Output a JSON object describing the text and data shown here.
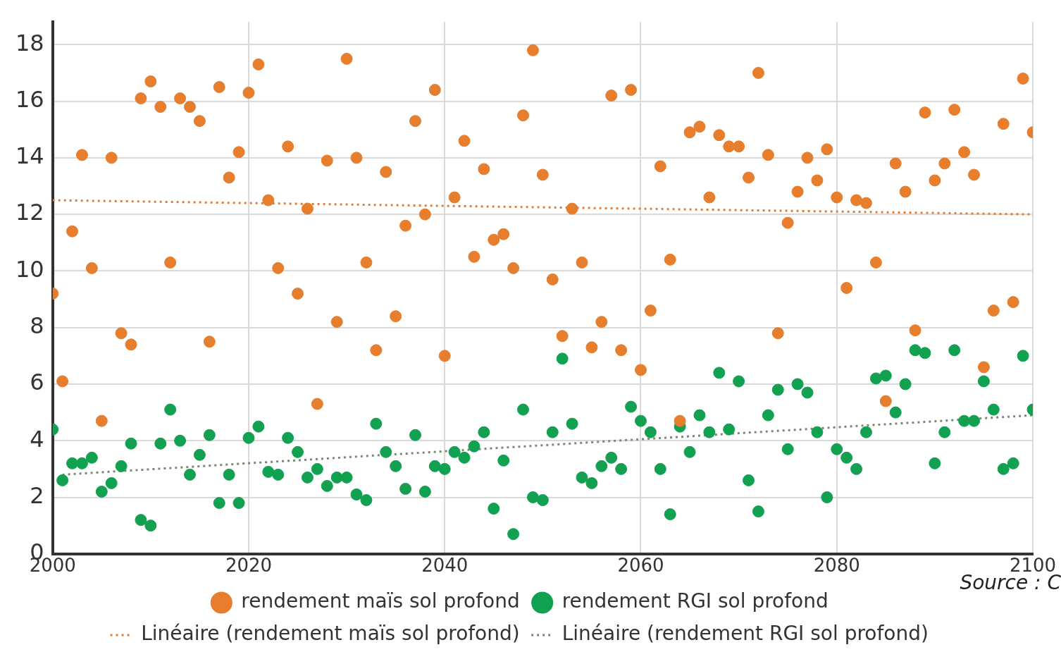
{
  "chart_data": {
    "type": "scatter",
    "x": [
      2000,
      2001,
      2002,
      2003,
      2004,
      2005,
      2006,
      2007,
      2008,
      2009,
      2010,
      2011,
      2012,
      2013,
      2014,
      2015,
      2016,
      2017,
      2018,
      2019,
      2020,
      2021,
      2022,
      2023,
      2024,
      2025,
      2026,
      2027,
      2028,
      2029,
      2030,
      2031,
      2032,
      2033,
      2034,
      2035,
      2036,
      2037,
      2038,
      2039,
      2040,
      2041,
      2042,
      2043,
      2044,
      2045,
      2046,
      2047,
      2048,
      2049,
      2050,
      2051,
      2052,
      2053,
      2054,
      2055,
      2056,
      2057,
      2058,
      2059,
      2060,
      2061,
      2062,
      2063,
      2064,
      2065,
      2066,
      2067,
      2068,
      2069,
      2070,
      2071,
      2072,
      2073,
      2074,
      2075,
      2076,
      2077,
      2078,
      2079,
      2080,
      2081,
      2082,
      2083,
      2084,
      2085,
      2086,
      2087,
      2088,
      2089,
      2090,
      2091,
      2092,
      2093,
      2094,
      2095,
      2096,
      2097,
      2098,
      2099,
      2100
    ],
    "series": [
      {
        "name": "rendement maïs sol profond",
        "type": "scatter",
        "marker": "circle",
        "color": "#e67e2e",
        "values": [
          9.2,
          6.1,
          11.4,
          14.1,
          10.1,
          4.7,
          14.0,
          7.8,
          7.4,
          16.1,
          16.7,
          15.8,
          10.3,
          16.1,
          15.8,
          15.3,
          7.5,
          16.5,
          13.3,
          14.2,
          16.3,
          17.3,
          12.5,
          10.1,
          14.4,
          9.2,
          12.2,
          5.3,
          13.9,
          8.2,
          17.5,
          14.0,
          10.3,
          7.2,
          13.5,
          8.4,
          11.6,
          15.3,
          12.0,
          16.4,
          7.0,
          12.6,
          14.6,
          10.5,
          13.6,
          11.1,
          11.3,
          10.1,
          15.5,
          17.8,
          13.4,
          9.7,
          7.7,
          12.2,
          10.3,
          7.3,
          8.2,
          16.2,
          7.2,
          16.4,
          6.5,
          8.6,
          13.7,
          10.4,
          4.7,
          14.9,
          15.1,
          12.6,
          14.8,
          14.4,
          14.4,
          13.3,
          17.0,
          14.1,
          7.8,
          11.7,
          12.8,
          14.0,
          13.2,
          14.3,
          12.6,
          9.4,
          12.5,
          12.4,
          10.3,
          5.4,
          13.8,
          12.8,
          7.9,
          15.6,
          13.2,
          13.8,
          15.7,
          14.2,
          13.4,
          6.6,
          8.6,
          15.2,
          8.9,
          16.8,
          14.9
        ]
      },
      {
        "name": "rendement RGI sol profond",
        "type": "scatter",
        "marker": "circle",
        "color": "#12a150",
        "values": [
          4.4,
          2.6,
          3.2,
          3.2,
          3.4,
          2.2,
          2.5,
          3.1,
          3.9,
          1.2,
          1.0,
          3.9,
          5.1,
          4.0,
          2.8,
          3.5,
          4.2,
          1.8,
          2.8,
          1.8,
          4.1,
          4.5,
          2.9,
          2.8,
          4.1,
          3.6,
          2.7,
          3.0,
          2.4,
          2.7,
          2.7,
          2.1,
          1.9,
          4.6,
          3.6,
          3.1,
          2.3,
          4.2,
          2.2,
          3.1,
          3.0,
          3.6,
          3.4,
          3.8,
          4.3,
          1.6,
          3.3,
          0.7,
          5.1,
          2.0,
          1.9,
          4.3,
          6.9,
          4.6,
          2.7,
          2.5,
          3.1,
          3.4,
          3.0,
          5.2,
          4.7,
          4.3,
          3.0,
          1.4,
          4.5,
          3.6,
          4.9,
          4.3,
          6.4,
          4.4,
          6.1,
          2.6,
          1.5,
          4.9,
          5.8,
          3.7,
          6.0,
          5.7,
          4.3,
          2.0,
          3.7,
          3.4,
          3.0,
          4.3,
          6.2,
          6.3,
          5.0,
          6.0,
          7.2,
          7.1,
          3.2,
          4.3,
          7.2,
          4.7,
          4.7,
          6.1,
          5.1,
          3.0,
          3.2,
          7.0,
          5.1
        ]
      },
      {
        "name": "Linéaire (rendement maïs sol profond)",
        "type": "line",
        "marker": "none",
        "line_style": "dotted",
        "color": "#e67e2e",
        "x": [
          2000,
          2100
        ],
        "values": [
          12.5,
          12.0
        ]
      },
      {
        "name": "Linéaire (rendement RGI sol profond)",
        "type": "line",
        "marker": "none",
        "line_style": "dotted",
        "color": "#7a8a72",
        "x": [
          2001,
          2100
        ],
        "values": [
          2.8,
          4.9
        ]
      }
    ],
    "xlim": [
      2000,
      2100
    ],
    "xticks": [
      2000,
      2020,
      2040,
      2060,
      2080,
      2100
    ],
    "ylim": [
      0,
      18.8
    ],
    "yticks": [
      0,
      2,
      4,
      6,
      8,
      10,
      12,
      14,
      16,
      18
    ],
    "grid": true,
    "legend": "bottom",
    "annotations": [
      "Source : C"
    ]
  }
}
